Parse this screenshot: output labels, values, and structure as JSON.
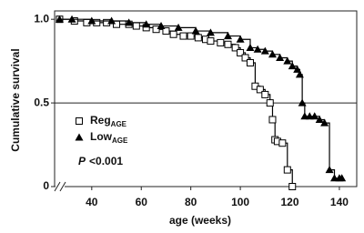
{
  "chart_data": {
    "type": "step",
    "xlabel": "age (weeks)",
    "ylabel": "Cumulative survival",
    "xlim": [
      25,
      147
    ],
    "ylim": [
      0,
      1.05
    ],
    "xticks": [
      40,
      60,
      80,
      100,
      120,
      140
    ],
    "yticks": [
      0,
      0.5,
      {
        "value": 1,
        "label": "1.0"
      }
    ],
    "reference_line": 0.5,
    "annotation": {
      "symbol": "P",
      "text": "<0.001"
    },
    "series": [
      {
        "name": "Reg",
        "name_subscript": "AGE",
        "marker": "square",
        "color": "#000000",
        "x": [
          27,
          33,
          38,
          42,
          46,
          50,
          55,
          58,
          62,
          66,
          70,
          73,
          77,
          80,
          83,
          86,
          88,
          92,
          95,
          98,
          100,
          102,
          104,
          106,
          108,
          110,
          112,
          113,
          114,
          115,
          117,
          119,
          121
        ],
        "values": [
          1.0,
          0.99,
          0.98,
          0.98,
          0.98,
          0.97,
          0.97,
          0.96,
          0.95,
          0.94,
          0.93,
          0.91,
          0.9,
          0.9,
          0.89,
          0.88,
          0.87,
          0.86,
          0.85,
          0.83,
          0.8,
          0.77,
          0.74,
          0.6,
          0.58,
          0.55,
          0.5,
          0.4,
          0.28,
          0.27,
          0.26,
          0.1,
          0.0
        ]
      },
      {
        "name": "Low",
        "name_subscript": "AGE",
        "marker": "triangle",
        "color": "#000000",
        "x": [
          27,
          32,
          40,
          48,
          55,
          62,
          68,
          75,
          82,
          88,
          95,
          100,
          104,
          107,
          110,
          113,
          116,
          119,
          121,
          123,
          124,
          125,
          126,
          128,
          130,
          132,
          134,
          136,
          138,
          140,
          141
        ],
        "values": [
          1.0,
          1.0,
          0.99,
          0.99,
          0.98,
          0.97,
          0.96,
          0.95,
          0.93,
          0.92,
          0.9,
          0.88,
          0.83,
          0.82,
          0.81,
          0.79,
          0.77,
          0.75,
          0.72,
          0.7,
          0.67,
          0.5,
          0.42,
          0.42,
          0.42,
          0.4,
          0.38,
          0.1,
          0.05,
          0.05,
          0.05
        ]
      }
    ]
  }
}
